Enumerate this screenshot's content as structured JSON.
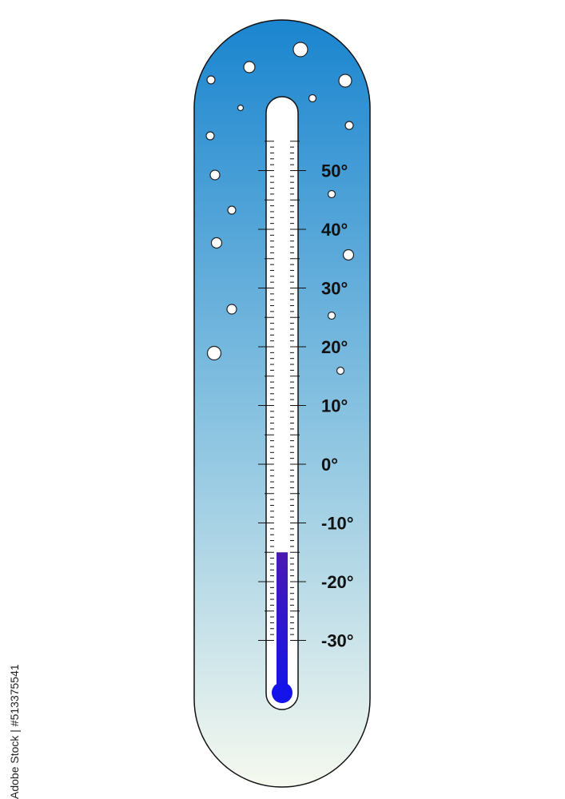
{
  "thermometer": {
    "scale_labels": [
      "50°",
      "40°",
      "30°",
      "20°",
      "10°",
      "0°",
      "-10°",
      "-20°",
      "-30°"
    ],
    "scale_values": [
      50,
      40,
      30,
      20,
      10,
      0,
      -10,
      -20,
      -30
    ],
    "scale_min": -30,
    "scale_max": 55,
    "current_temperature": -15,
    "colors": {
      "body_top": "#1a85cf",
      "body_bottom": "#f6f9ef",
      "mercury_top": "#4a1ab0",
      "mercury_bottom": "#1414ea",
      "tube": "#ffffff",
      "outline": "#111111"
    }
  },
  "watermark": {
    "stock_id": "Adobe Stock | #513375541"
  }
}
